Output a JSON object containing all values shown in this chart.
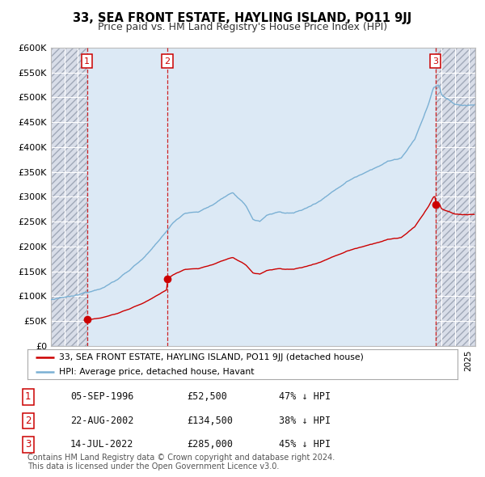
{
  "title": "33, SEA FRONT ESTATE, HAYLING ISLAND, PO11 9JJ",
  "subtitle": "Price paid vs. HM Land Registry's House Price Index (HPI)",
  "ylabel_ticks": [
    "£0",
    "£50K",
    "£100K",
    "£150K",
    "£200K",
    "£250K",
    "£300K",
    "£350K",
    "£400K",
    "£450K",
    "£500K",
    "£550K",
    "£600K"
  ],
  "ytick_values": [
    0,
    50000,
    100000,
    150000,
    200000,
    250000,
    300000,
    350000,
    400000,
    450000,
    500000,
    550000,
    600000
  ],
  "xmin": 1994.0,
  "xmax": 2025.5,
  "ymin": 0,
  "ymax": 600000,
  "sale_dates": [
    1996.68,
    2002.64,
    2022.53
  ],
  "sale_prices": [
    52500,
    134500,
    285000
  ],
  "sale_labels": [
    "1",
    "2",
    "3"
  ],
  "sale_dot_color": "#cc0000",
  "hpi_line_color": "#7ab0d4",
  "price_line_color": "#cc0000",
  "vline_color": "#cc0000",
  "shaded_region_color": "#dce9f5",
  "legend_entries": [
    "33, SEA FRONT ESTATE, HAYLING ISLAND, PO11 9JJ (detached house)",
    "HPI: Average price, detached house, Havant"
  ],
  "table_rows": [
    [
      "1",
      "05-SEP-1996",
      "£52,500",
      "47% ↓ HPI"
    ],
    [
      "2",
      "22-AUG-2002",
      "£134,500",
      "38% ↓ HPI"
    ],
    [
      "3",
      "14-JUL-2022",
      "£285,000",
      "45% ↓ HPI"
    ]
  ],
  "footnote": "Contains HM Land Registry data © Crown copyright and database right 2024.\nThis data is licensed under the Open Government Licence v3.0.",
  "bg_color": "#ffffff",
  "plot_bg_color": "#eef2f8",
  "grid_color": "#ffffff",
  "hatch_bg_color": "#d8dde8"
}
